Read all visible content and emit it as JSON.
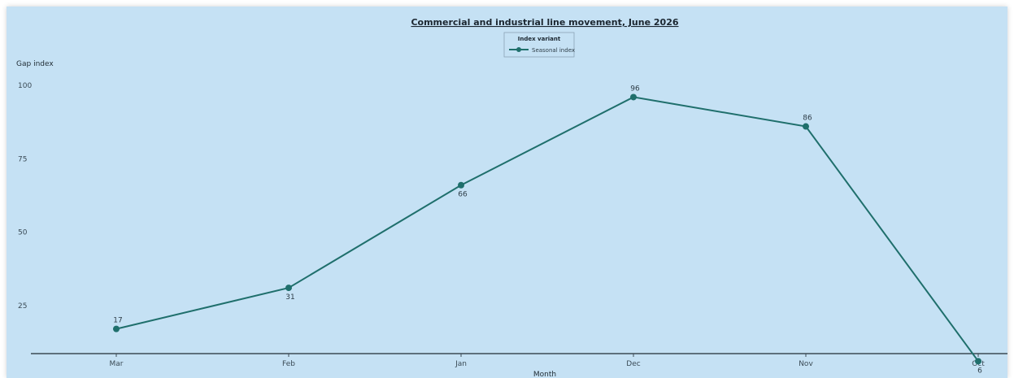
{
  "chart_data": {
    "type": "line",
    "title": "Commercial and industrial line movement, June 2026",
    "xlabel": "Month",
    "ylabel": "Gap index",
    "categories": [
      "Mar",
      "Feb",
      "Jan",
      "Dec",
      "Nov",
      "Oct"
    ],
    "ylim": [
      0,
      100
    ],
    "yticks": [
      0,
      25,
      50,
      75,
      100
    ],
    "grid": false,
    "legend": {
      "title": "Index variant",
      "position": "top-center"
    },
    "series": [
      {
        "name": "Seasonal index",
        "color": "#1f6f6c",
        "values": [
          17,
          31,
          66,
          96,
          86,
          6
        ]
      }
    ]
  }
}
